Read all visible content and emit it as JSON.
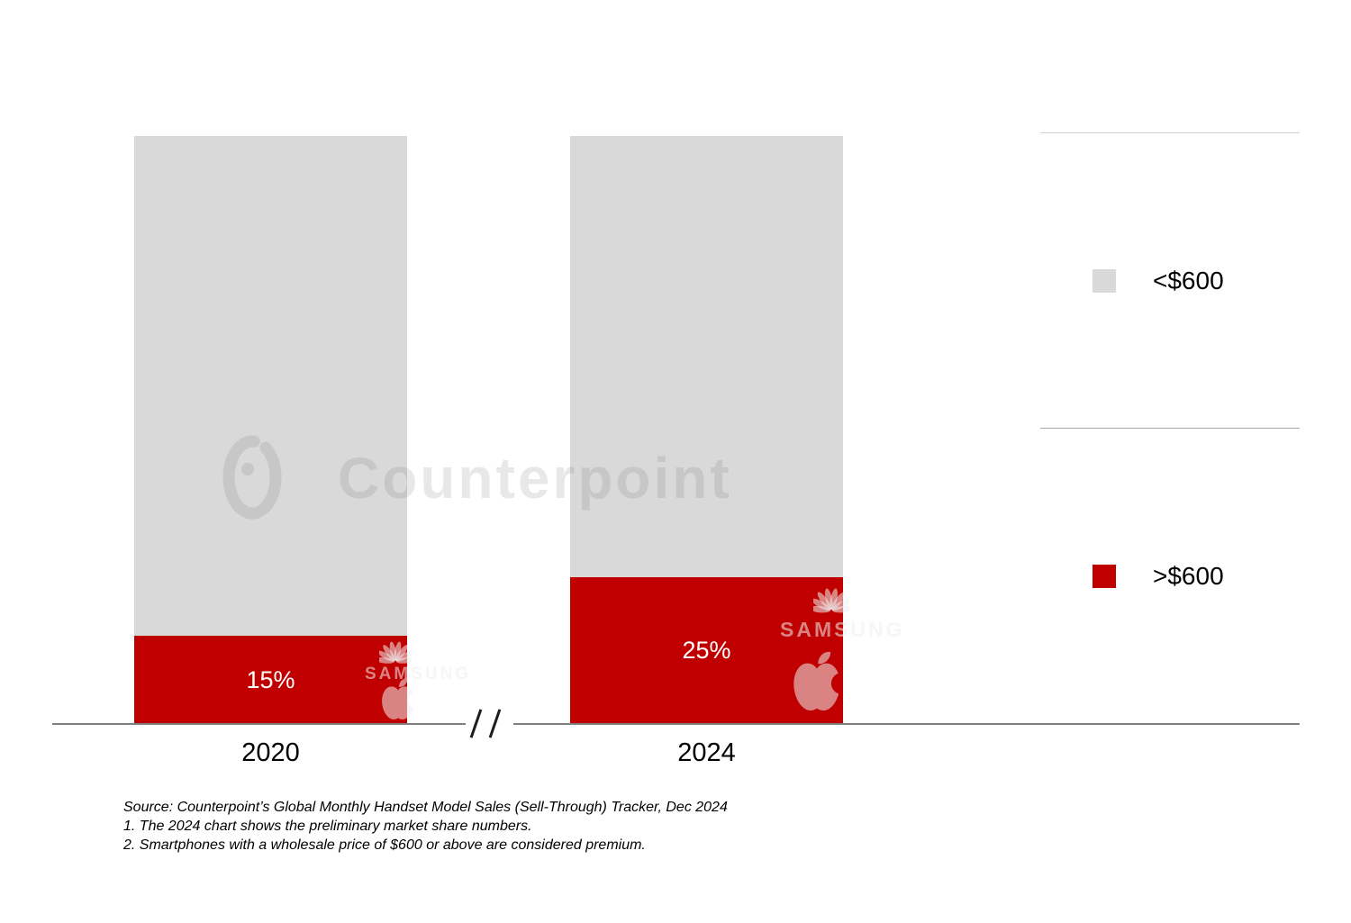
{
  "chart_data": {
    "type": "bar",
    "stacked": true,
    "categories": [
      "2020",
      "2024"
    ],
    "series": [
      {
        "name": "<$600",
        "color": "#d9d9d9",
        "values": [
          85,
          75
        ]
      },
      {
        "name": ">$600",
        "color": "#c00000",
        "values": [
          15,
          25
        ]
      }
    ],
    "bar_labels": [
      "15%",
      "25%"
    ],
    "ylim": [
      0,
      100
    ],
    "grid": false,
    "legend_position": "right",
    "axis_break_between_categories": true
  },
  "legend": {
    "items": [
      {
        "label": "<$600",
        "color": "#d9d9d9"
      },
      {
        "label": ">$600",
        "color": "#c00000"
      }
    ]
  },
  "watermarks": {
    "counterpoint": "Counterpoint",
    "samsung": "SAMSUNG"
  },
  "footnotes": {
    "source": "Source: Counterpoint’s Global Monthly Handset Model Sales (Sell-Through) Tracker, Dec 2024",
    "note1": "1. The 2024 chart shows the preliminary market share numbers.",
    "note2": "2. Smartphones with a wholesale price of $600 or above are considered premium."
  },
  "colors": {
    "premium_red": "#c00000",
    "non_premium_gray": "#d9d9d9",
    "axis_gray": "#7f7f7f"
  }
}
